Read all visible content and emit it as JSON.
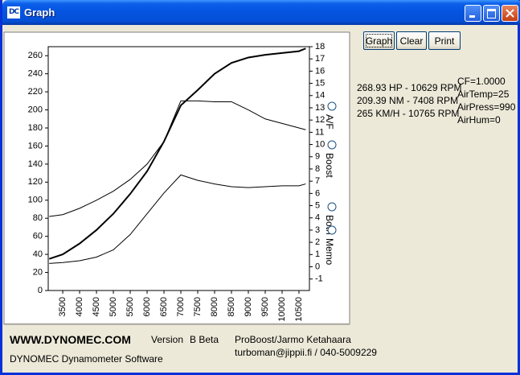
{
  "window": {
    "title": "Graph",
    "icon": "DC"
  },
  "buttons": [
    "Graph",
    "Clear",
    "Print"
  ],
  "readouts": [
    "268.93 HP - 10629 RPM",
    "209.39 NM - 7408 RPM",
    "265 KM/H - 10765 RPM"
  ],
  "conditions": [
    "CF=1.0000",
    "AirTemp=25",
    "AirPress=990",
    "AirHum=0"
  ],
  "radio_options": [
    "A/F",
    "Boost",
    "Both",
    "Memo"
  ],
  "footer": {
    "website": "WWW.DYNOMEC.COM",
    "version_label": "Version",
    "version": "B Beta",
    "software": "DYNOMEC Dynamometer Software",
    "author": "ProBoost/Jarmo Ketahaara",
    "contact": "turboman@jippii.fi / 040-5009229"
  },
  "chart_data": {
    "type": "line",
    "x": [
      3100,
      3500,
      4000,
      4500,
      5000,
      5500,
      6000,
      6500,
      7000,
      7500,
      8000,
      8500,
      9000,
      9500,
      10000,
      10500,
      10700
    ],
    "series": [
      {
        "color": "#000000",
        "width": 2,
        "values": [
          35,
          40,
          52,
          67,
          85,
          107,
          132,
          165,
          205,
          222,
          240,
          252,
          258,
          261,
          263,
          265,
          268
        ]
      },
      {
        "color": "#000000",
        "width": 1,
        "values": [
          82,
          84,
          91,
          100,
          110,
          123,
          140,
          165,
          210,
          210,
          209,
          209,
          200,
          190,
          185,
          180,
          178
        ]
      },
      {
        "color": "#000000",
        "width": 1,
        "values": [
          30,
          31,
          33,
          37,
          45,
          62,
          85,
          108,
          128,
          122,
          118,
          115,
          114,
          115,
          116,
          116,
          118
        ]
      }
    ],
    "xlim": [
      3070,
      10810
    ],
    "ylim": [
      0,
      270
    ],
    "y2lim": [
      -1.94,
      18
    ],
    "xticks": [
      3500,
      4000,
      4500,
      5000,
      5500,
      6000,
      6500,
      7000,
      7500,
      8000,
      8500,
      9000,
      9500,
      10000,
      10500
    ],
    "yticks": [
      0,
      20,
      40,
      60,
      80,
      100,
      120,
      140,
      160,
      180,
      200,
      220,
      240,
      260
    ],
    "y2ticks": [
      -1,
      0,
      1,
      2,
      3,
      4,
      5,
      6,
      7,
      8,
      9,
      10,
      11,
      12,
      13,
      14,
      15,
      16,
      17,
      18
    ]
  }
}
